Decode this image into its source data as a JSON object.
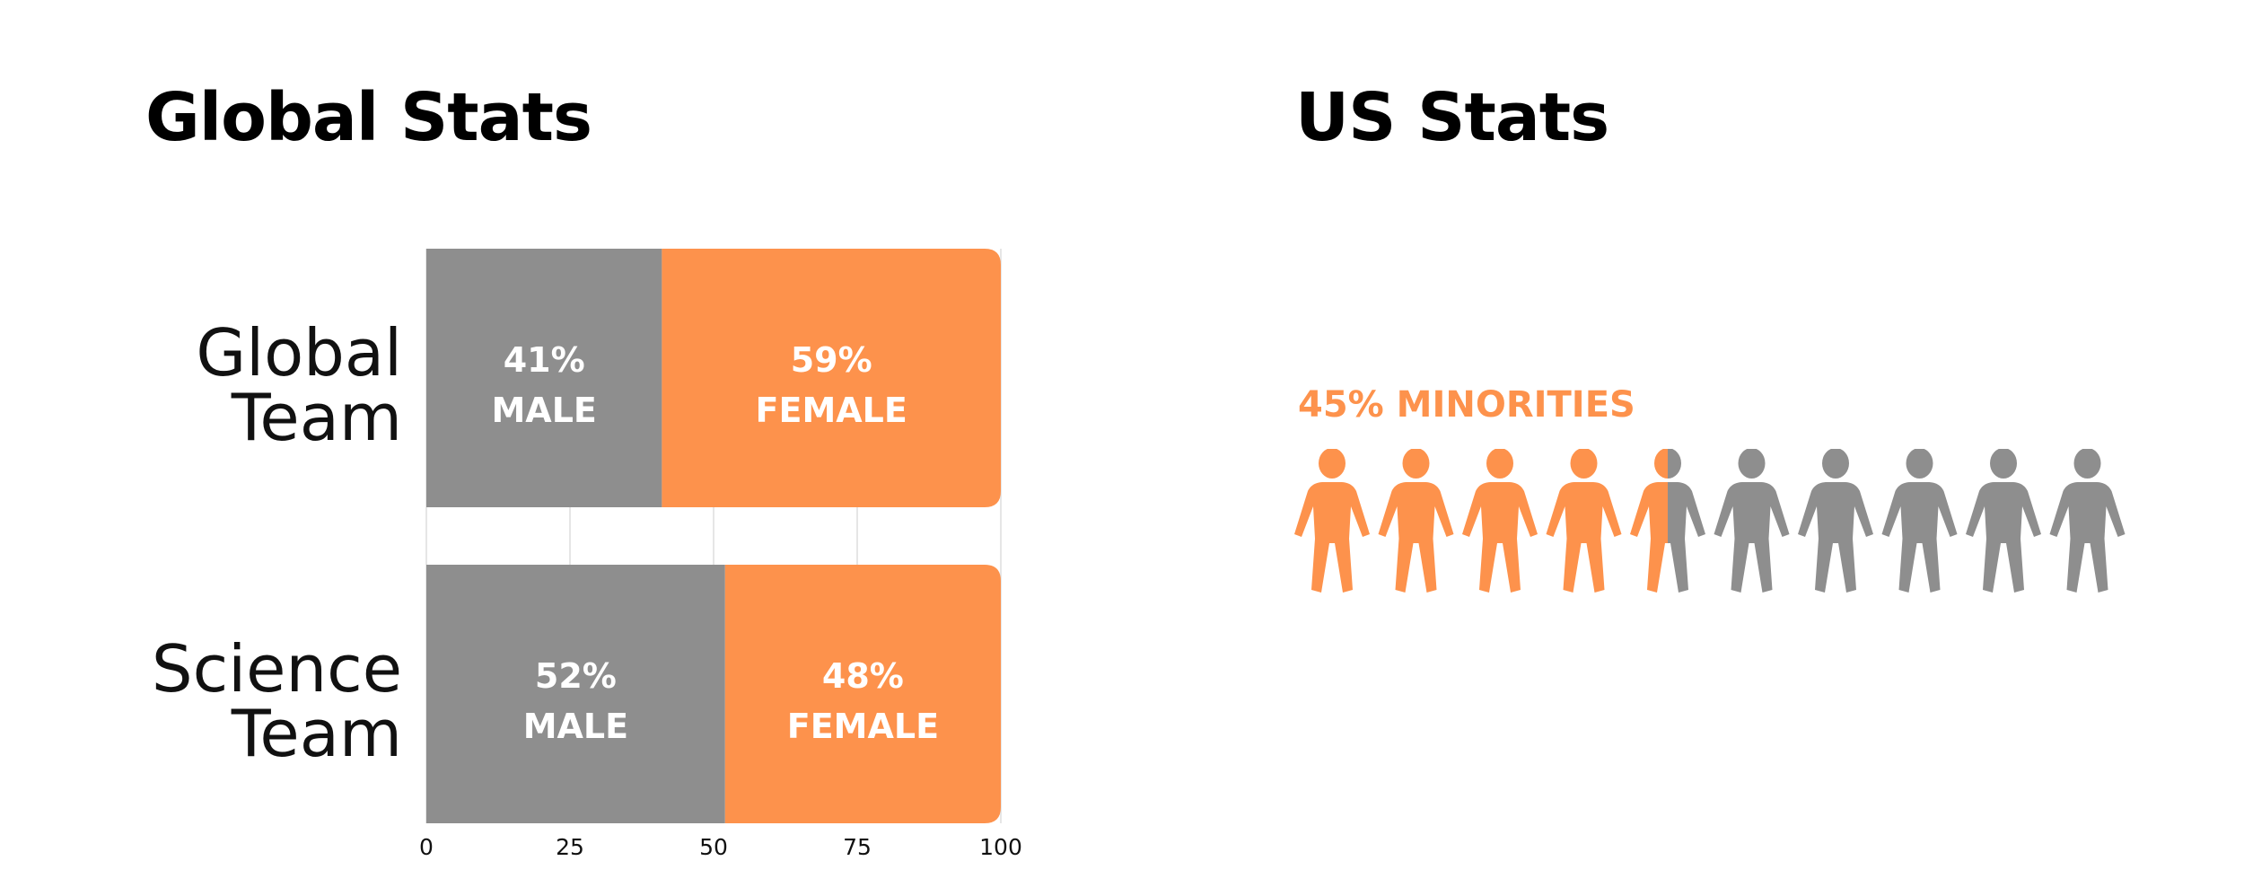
{
  "global_section": {
    "title": "Global Stats"
  },
  "us_section": {
    "title": "US Stats",
    "minority_label": "45% MINORITIES"
  },
  "colors": {
    "male": "#8e8e8e",
    "female": "#fd924c",
    "grid": "#dddddd",
    "text": "#111111"
  },
  "chart_data": [
    {
      "type": "bar",
      "orientation": "horizontal",
      "stacked": true,
      "title": "Global Stats",
      "categories": [
        {
          "id": "global-team",
          "lines": [
            "Global",
            "Team"
          ]
        },
        {
          "id": "science-team",
          "lines": [
            "Science",
            "Team"
          ]
        }
      ],
      "series": [
        {
          "name": "Male",
          "label": "MALE",
          "values": [
            41,
            52
          ]
        },
        {
          "name": "Female",
          "label": "FEMALE",
          "values": [
            59,
            48
          ]
        }
      ],
      "bar_labels": [
        [
          "41%",
          "59%"
        ],
        [
          "52%",
          "48%"
        ]
      ],
      "xlim": [
        0,
        100
      ],
      "xticks": [
        "0",
        "25",
        "50",
        "75",
        "100"
      ],
      "grid": true
    },
    {
      "type": "pictogram",
      "title": "US Stats",
      "label": "45% MINORITIES",
      "total_icons": 10,
      "highlighted_fraction": 0.45
    }
  ]
}
